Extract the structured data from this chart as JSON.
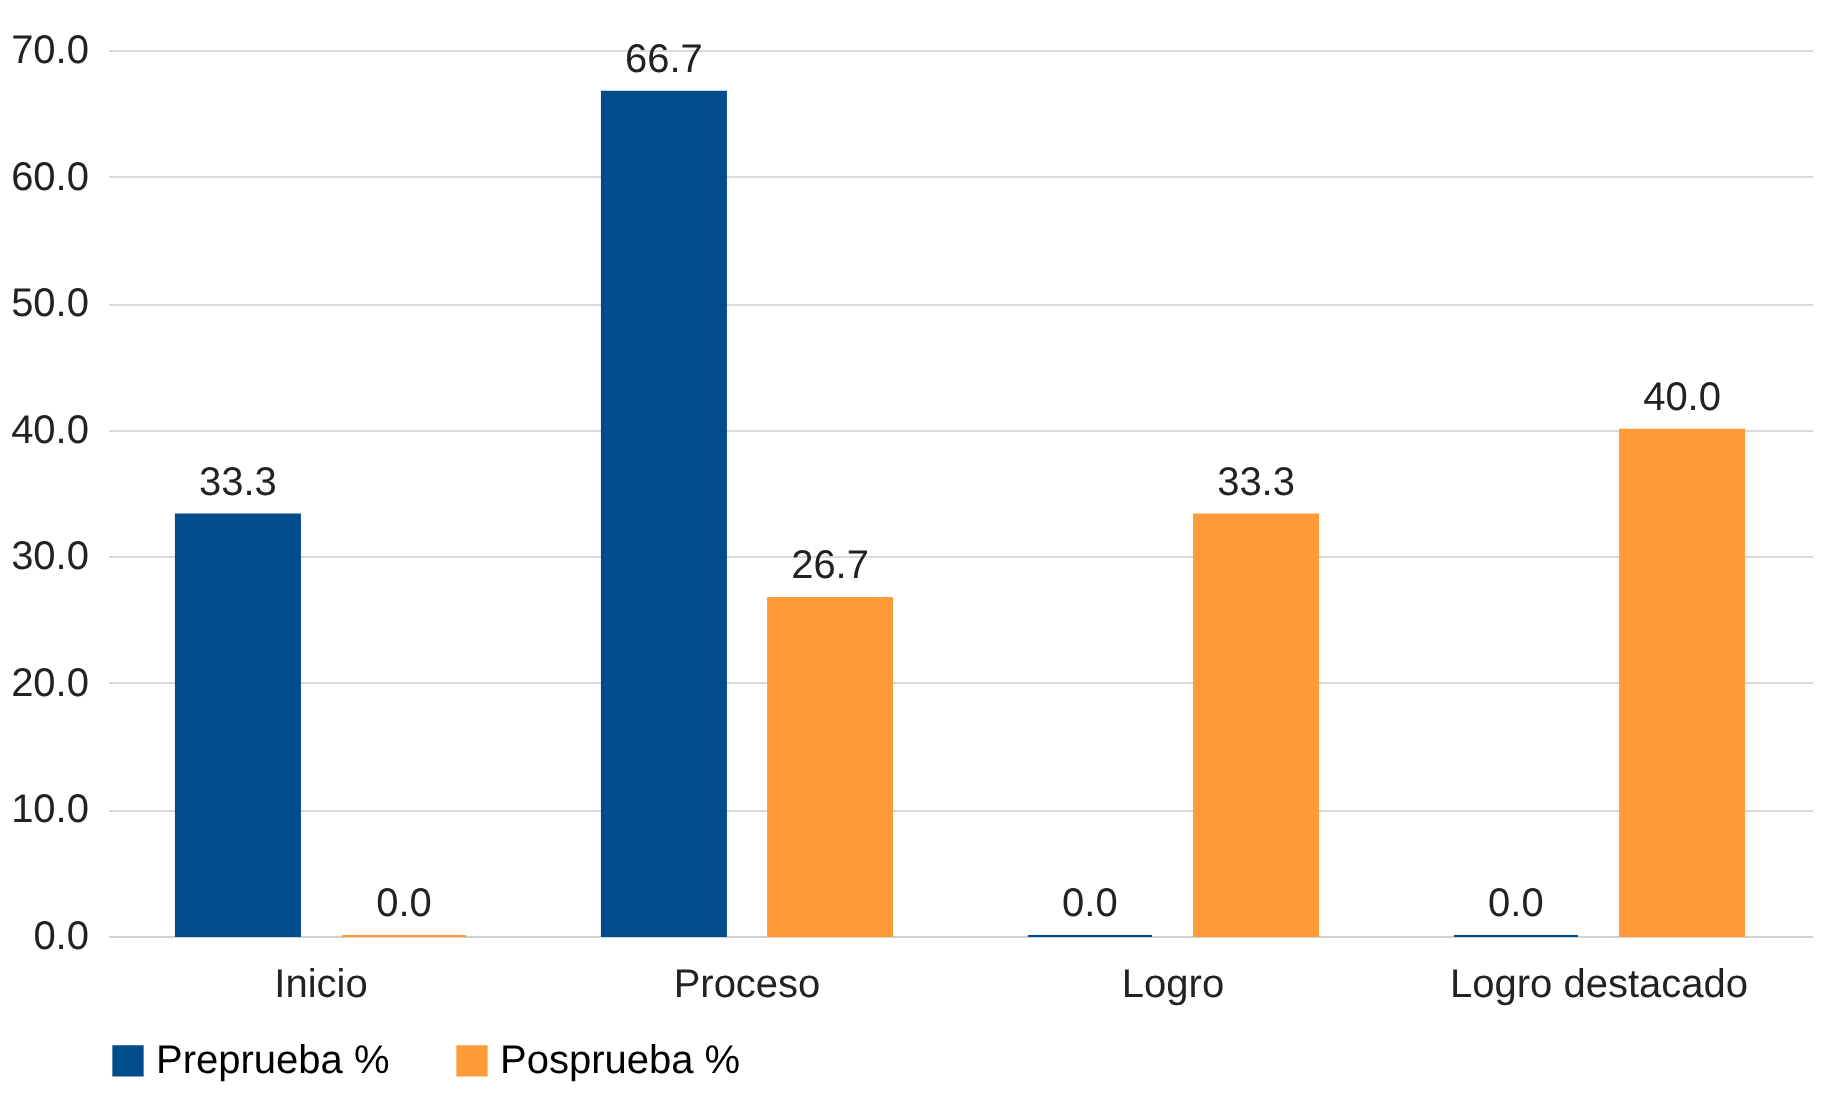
{
  "chart_data": {
    "type": "bar",
    "categories": [
      "Inicio",
      "Proceso",
      "Logro",
      "Logro destacado"
    ],
    "series": [
      {
        "name": "Preprueba %",
        "color": "#004c8c",
        "values": [
          33.3,
          66.7,
          0.0,
          0.0
        ],
        "value_labels": [
          "33.3",
          "66.7",
          "0.0",
          "0.0"
        ]
      },
      {
        "name": "Posprueba %",
        "color": "#ff9b38",
        "values": [
          0.0,
          26.7,
          33.3,
          40.0
        ],
        "value_labels": [
          "0.0",
          "26.7",
          "33.3",
          "40.0"
        ]
      }
    ],
    "ylim": [
      0,
      70
    ],
    "yticks": [
      {
        "value": 0,
        "label": "0.0"
      },
      {
        "value": 10,
        "label": "10.0"
      },
      {
        "value": 20,
        "label": "20.0"
      },
      {
        "value": 30,
        "label": "30.0"
      },
      {
        "value": 40,
        "label": "40.0"
      },
      {
        "value": 50,
        "label": "50.0"
      },
      {
        "value": 60,
        "label": "60.0"
      },
      {
        "value": 70,
        "label": "70.0"
      }
    ],
    "grid": "y",
    "legend": "bottom"
  }
}
